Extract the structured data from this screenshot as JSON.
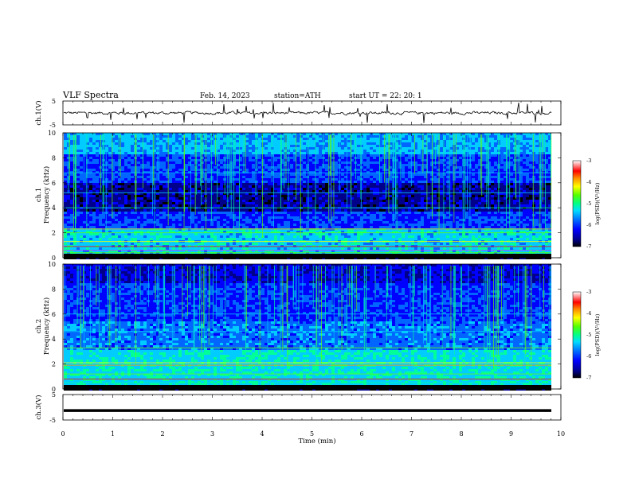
{
  "header": {
    "title": "VLF  Spectra",
    "date": "Feb. 14, 2023",
    "station": "station=ATH",
    "start": "start  UT  =    22: 20: 1"
  },
  "chart_data": [
    {
      "type": "line",
      "ylabel": "ch.1(V)",
      "ylim": [
        -5,
        5
      ],
      "yticks": [
        "5",
        "-5"
      ],
      "xlim": [
        0,
        10
      ],
      "description_series": "noisy waveform near 0 V with spikes"
    },
    {
      "type": "heatmap",
      "ylabel": "Frequency (kHz)",
      "channel": "ch.1",
      "ylim": [
        0,
        10
      ],
      "yticks": [
        "0",
        "2",
        "4",
        "6",
        "8",
        "10"
      ],
      "xlim": [
        0,
        10
      ],
      "colorbar": {
        "label": "log(PSD)(V²/Hz)",
        "ticks": [
          "-3",
          "-4",
          "-5",
          "-6",
          "-7"
        ],
        "range": [
          -7,
          -3
        ]
      }
    },
    {
      "type": "heatmap",
      "ylabel": "Frequency (kHz)",
      "channel": "ch.2",
      "ylim": [
        0,
        10
      ],
      "yticks": [
        "0",
        "2",
        "4",
        "6",
        "8",
        "10"
      ],
      "xlim": [
        0,
        10
      ],
      "colorbar": {
        "label": "log(PSD)(V²/Hz)",
        "ticks": [
          "-3",
          "-4",
          "-5",
          "-6",
          "-7"
        ],
        "range": [
          -7,
          -3
        ]
      }
    },
    {
      "type": "line",
      "ylabel": "ch.3(V)",
      "ylim": [
        -5,
        5
      ],
      "yticks": [
        "5",
        "-5"
      ],
      "xlim": [
        0,
        10
      ],
      "xlabel": "Time  (min)",
      "xticks": [
        "0",
        "1",
        "2",
        "3",
        "4",
        "5",
        "6",
        "7",
        "8",
        "9",
        "10"
      ],
      "series_value": -1.3
    }
  ],
  "labels": {
    "ch1_prefix": "ch.1",
    "ch2_prefix": "ch.2",
    "freq_label": "Frequency (kHz)",
    "cb_label": "log(PSD)(V²/Hz)"
  },
  "colors": {
    "cmap": [
      "#000000",
      "#00008b",
      "#0000ff",
      "#0066ff",
      "#00ccff",
      "#00ff99",
      "#66ff00",
      "#ffff00",
      "#ff9900",
      "#ff0000",
      "#ffffff"
    ]
  }
}
